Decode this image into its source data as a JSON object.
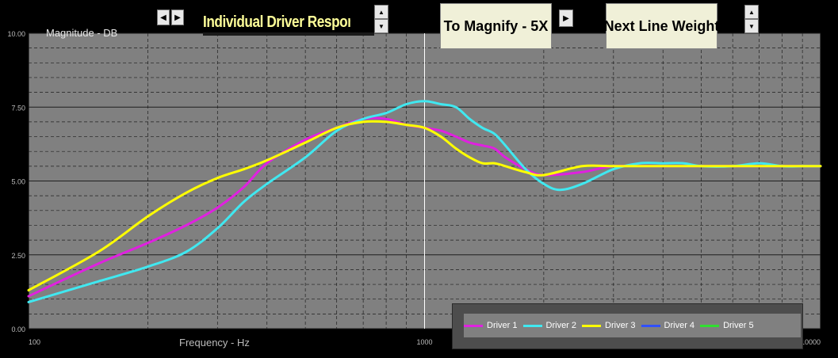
{
  "window": {
    "title": "Individual Driver Response",
    "magnify_label": "To Magnify - 5X",
    "line_weight_label": "Next Line Weight"
  },
  "icons": {
    "left": "triangle-left-icon",
    "right": "triangle-right-icon",
    "up": "triangle-up-icon",
    "down": "triangle-down-icon"
  },
  "colors": {
    "plot_bg": "#808080",
    "frame": "#000000",
    "gridline": "#1e1e1e",
    "cursor": "#ffffff",
    "legend_bg": "#4d4d4d"
  },
  "chart_data": {
    "type": "line",
    "ylabel": "Magnitude  -  DB",
    "xlabel": "Frequency  -  Hz",
    "xscale": "log",
    "xlim": [
      100,
      10000
    ],
    "ylim": [
      0,
      10
    ],
    "x_ticks": [
      "100",
      "1000",
      "10000"
    ],
    "y_ticks": [
      "0.00",
      "2.50",
      "5.00",
      "7.50",
      "10.00"
    ],
    "grid": true,
    "cursor_x": 1000,
    "legend_position": "bottom-right",
    "series": [
      {
        "name": "Driver 1",
        "color": "#e020e0",
        "x": [
          100,
          150,
          200,
          250,
          300,
          350,
          400,
          500,
          600,
          700,
          800,
          900,
          1000,
          1100,
          1200,
          1300,
          1400,
          1500,
          1600,
          1800,
          2000,
          2500,
          3000,
          4000,
          5000,
          6000,
          7000,
          8000,
          9000,
          10000
        ],
        "values": [
          1.1,
          2.2,
          2.9,
          3.5,
          4.1,
          4.8,
          5.6,
          6.4,
          6.8,
          7.1,
          7.1,
          6.9,
          6.8,
          6.7,
          6.5,
          6.3,
          6.2,
          6.1,
          5.8,
          5.4,
          5.2,
          5.3,
          5.5,
          5.5,
          5.5,
          5.5,
          5.5,
          5.5,
          5.5,
          5.5
        ]
      },
      {
        "name": "Driver 2",
        "color": "#40e8f0",
        "x": [
          100,
          150,
          200,
          250,
          300,
          350,
          400,
          500,
          600,
          700,
          800,
          900,
          1000,
          1100,
          1200,
          1300,
          1400,
          1500,
          1600,
          1800,
          2000,
          2200,
          2500,
          3000,
          3500,
          4000,
          4500,
          5000,
          6000,
          7000,
          8000,
          9000,
          10000
        ],
        "values": [
          0.9,
          1.6,
          2.1,
          2.6,
          3.4,
          4.3,
          4.9,
          5.8,
          6.7,
          7.1,
          7.3,
          7.6,
          7.7,
          7.6,
          7.5,
          7.1,
          6.8,
          6.6,
          6.2,
          5.4,
          4.9,
          4.7,
          4.9,
          5.4,
          5.6,
          5.6,
          5.6,
          5.5,
          5.5,
          5.6,
          5.5,
          5.5,
          5.5
        ]
      },
      {
        "name": "Driver 3",
        "color": "#ffff00",
        "x": [
          100,
          150,
          200,
          250,
          300,
          350,
          400,
          500,
          600,
          700,
          800,
          900,
          1000,
          1100,
          1200,
          1300,
          1400,
          1500,
          1600,
          1800,
          2000,
          2500,
          3000,
          4000,
          5000,
          6000,
          7000,
          8000,
          9000,
          10000
        ],
        "values": [
          1.3,
          2.6,
          3.8,
          4.6,
          5.1,
          5.4,
          5.7,
          6.3,
          6.8,
          7.0,
          7.0,
          6.9,
          6.8,
          6.5,
          6.1,
          5.8,
          5.6,
          5.6,
          5.5,
          5.3,
          5.2,
          5.5,
          5.5,
          5.5,
          5.5,
          5.5,
          5.5,
          5.5,
          5.5,
          5.5
        ]
      },
      {
        "name": "Driver 4",
        "color": "#3050ff",
        "x": [],
        "values": []
      },
      {
        "name": "Driver 5",
        "color": "#30e030",
        "x": [],
        "values": []
      }
    ]
  }
}
